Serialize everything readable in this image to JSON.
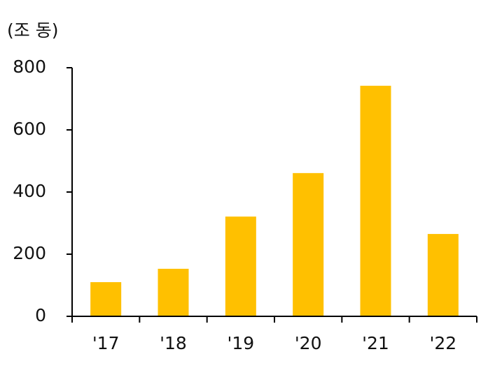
{
  "chart_data": {
    "type": "bar",
    "unit_label": "(조 동)",
    "categories": [
      "'17",
      "'18",
      "'19",
      "'20",
      "'21",
      "'22"
    ],
    "values": [
      110,
      153,
      321,
      461,
      742,
      265
    ],
    "color": "#ffc000",
    "ylim": [
      0,
      800
    ],
    "yticks": [
      0,
      200,
      400,
      600,
      800
    ],
    "grid": false
  }
}
